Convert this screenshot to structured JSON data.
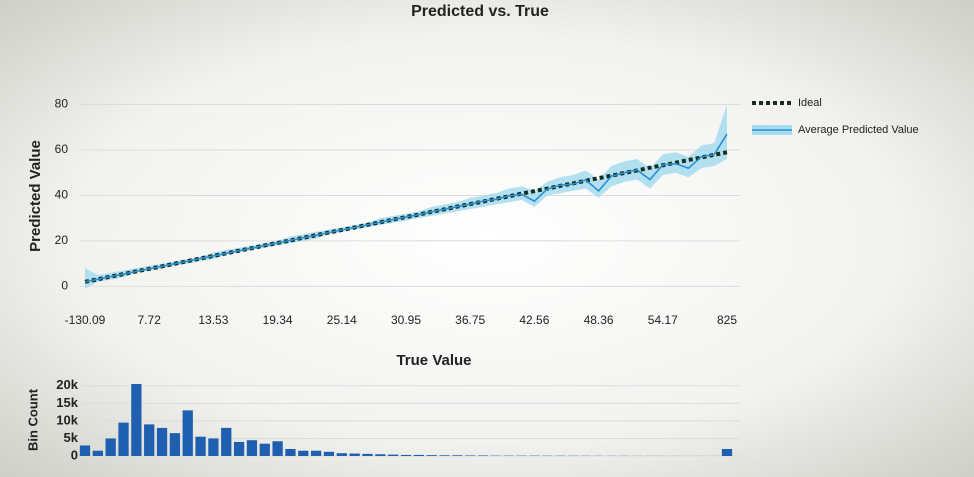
{
  "chart_data": [
    {
      "type": "line",
      "title": "Predicted vs. True",
      "x_label": "True Value",
      "y_label": "Predicted Value",
      "categories": [
        "-130.09",
        null,
        null,
        null,
        null,
        "7.72",
        null,
        null,
        null,
        null,
        "13.53",
        null,
        null,
        null,
        null,
        "19.34",
        null,
        null,
        null,
        null,
        "25.14",
        null,
        null,
        null,
        null,
        "30.95",
        null,
        null,
        null,
        null,
        "36.75",
        null,
        null,
        null,
        null,
        "42.56",
        null,
        null,
        null,
        null,
        "48.36",
        null,
        null,
        null,
        null,
        "54.17",
        null,
        null,
        null,
        null,
        "825"
      ],
      "ylim": [
        -6,
        82
      ],
      "yticks": [
        0,
        20,
        40,
        60,
        80
      ],
      "grid": true,
      "legend": "right",
      "series": [
        {
          "name": "Ideal",
          "color": "#16301f",
          "dashed": true,
          "values": [
            2,
            3.1,
            4.3,
            5.4,
            6.6,
            7.7,
            8.8,
            10,
            11.1,
            12.3,
            13.4,
            14.5,
            15.7,
            16.8,
            18,
            19.1,
            20.2,
            21.4,
            22.5,
            23.7,
            24.8,
            25.9,
            27.1,
            28.2,
            29.4,
            30.5,
            31.6,
            32.8,
            33.9,
            35.1,
            36.2,
            37.3,
            38.5,
            39.6,
            40.8,
            41.9,
            43,
            44.2,
            45.3,
            46.5,
            47.6,
            48.7,
            49.9,
            51,
            52.2,
            53.3,
            54.4,
            55.6,
            56.7,
            57.9,
            59
          ]
        },
        {
          "name": "Average Predicted Value",
          "color": "#2a8fd0",
          "band_color": "#a6dcf0",
          "values": [
            2,
            3.1,
            4.3,
            5.4,
            6.6,
            7.7,
            8.8,
            10,
            11.1,
            12.3,
            13.4,
            14.5,
            15.7,
            16.8,
            18,
            19.1,
            20.2,
            21.4,
            22.5,
            23.7,
            24.8,
            25.9,
            27.1,
            28.2,
            29.4,
            30.5,
            31.6,
            32.8,
            33.9,
            35.1,
            36.2,
            37.5,
            38.3,
            39.8,
            40.5,
            37.5,
            42.8,
            44.5,
            45,
            46.8,
            42,
            48.5,
            50,
            51.2,
            47,
            53.5,
            54,
            52,
            57,
            58,
            67
          ],
          "lower": [
            -1,
            2,
            3,
            4,
            6,
            7,
            8,
            9,
            10,
            11,
            12,
            14,
            15,
            16,
            17,
            18,
            19,
            20,
            21,
            23,
            24,
            25,
            26,
            27,
            28,
            29,
            30,
            31,
            32,
            33,
            34,
            35,
            36,
            37,
            38,
            35,
            40,
            41,
            42,
            43,
            39,
            44,
            46,
            47,
            43,
            49,
            50,
            48,
            52,
            53,
            56
          ],
          "upper": [
            8,
            5,
            6,
            7,
            8,
            9,
            10,
            11,
            12,
            13,
            15,
            16,
            17,
            18,
            19,
            20,
            22,
            23,
            24,
            25,
            26,
            27,
            28,
            30,
            31,
            32,
            33,
            35,
            36,
            37,
            39,
            40,
            41,
            43,
            44,
            42,
            46,
            48,
            49,
            51,
            47,
            53,
            55,
            56,
            52,
            58,
            59,
            57,
            62,
            63,
            80
          ]
        }
      ]
    },
    {
      "type": "bar",
      "y_label": "Bin Count",
      "color": "#1f5fb0",
      "ylim": [
        0,
        20500
      ],
      "yticks": [
        {
          "value": 0,
          "label": "0"
        },
        {
          "value": 5000,
          "label": "5k"
        },
        {
          "value": 10000,
          "label": "10k"
        },
        {
          "value": 15000,
          "label": "15k"
        },
        {
          "value": 20000,
          "label": "20k"
        }
      ],
      "values": [
        3000,
        1500,
        5000,
        9500,
        20500,
        9000,
        8000,
        6500,
        13000,
        5500,
        5000,
        8000,
        4000,
        4500,
        3500,
        4200,
        2000,
        1500,
        1500,
        1200,
        800,
        700,
        600,
        500,
        400,
        300,
        300,
        250,
        200,
        200,
        150,
        150,
        100,
        100,
        100,
        100,
        80,
        80,
        60,
        60,
        50,
        40,
        40,
        30,
        30,
        30,
        20,
        20,
        20,
        20,
        2000
      ]
    }
  ]
}
